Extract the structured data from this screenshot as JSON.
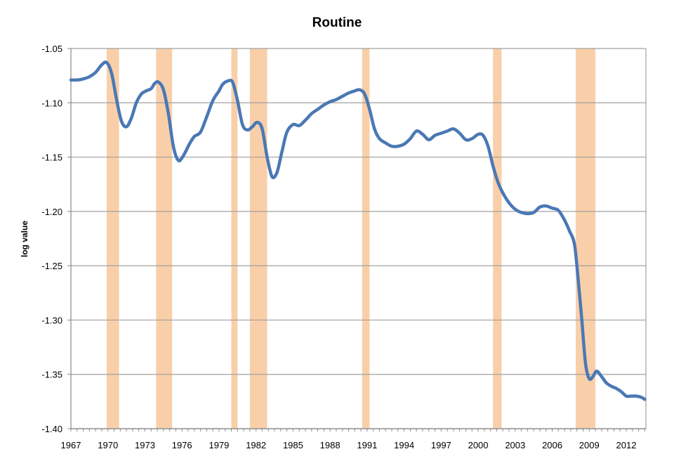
{
  "chart_data": {
    "type": "line",
    "title": "Routine",
    "xlabel": "",
    "ylabel": "log value",
    "xlim": [
      1967,
      2013.5
    ],
    "ylim": [
      -1.4,
      -1.05
    ],
    "grid": true,
    "legend": null,
    "x_ticks": [
      "1967",
      "1970",
      "1973",
      "1976",
      "1979",
      "1982",
      "1985",
      "1988",
      "1991",
      "1994",
      "1997",
      "2000",
      "2003",
      "2006",
      "2009",
      "2012"
    ],
    "y_ticks": [
      "-1.05",
      "-1.10",
      "-1.15",
      "-1.20",
      "-1.25",
      "-1.30",
      "-1.35",
      "-1.40"
    ],
    "recession_bands": [
      {
        "start": 1969.9,
        "end": 1970.9
      },
      {
        "start": 1973.9,
        "end": 1975.2
      },
      {
        "start": 1980.0,
        "end": 1980.5
      },
      {
        "start": 1981.5,
        "end": 1982.9
      },
      {
        "start": 1990.6,
        "end": 1991.2
      },
      {
        "start": 2001.2,
        "end": 2001.9
      },
      {
        "start": 2007.9,
        "end": 2009.5
      }
    ],
    "series": [
      {
        "name": "Routine",
        "color": "#4a78b5",
        "x": [
          1967.0,
          1967.5,
          1968.0,
          1968.5,
          1969.0,
          1969.5,
          1969.9,
          1970.3,
          1970.7,
          1971.1,
          1971.5,
          1971.9,
          1972.3,
          1972.7,
          1973.1,
          1973.5,
          1973.8,
          1974.1,
          1974.5,
          1974.9,
          1975.3,
          1975.7,
          1976.1,
          1976.6,
          1977.0,
          1977.5,
          1978.0,
          1978.5,
          1979.0,
          1979.3,
          1979.7,
          1980.1,
          1980.5,
          1980.9,
          1981.3,
          1981.7,
          1982.1,
          1982.5,
          1982.9,
          1983.3,
          1983.7,
          1984.1,
          1984.5,
          1985.0,
          1985.5,
          1986.0,
          1986.5,
          1987.0,
          1987.5,
          1988.0,
          1988.5,
          1989.0,
          1989.5,
          1990.0,
          1990.4,
          1990.8,
          1991.2,
          1991.6,
          1992.0,
          1992.5,
          1993.0,
          1993.5,
          1994.0,
          1994.5,
          1995.0,
          1995.5,
          1996.0,
          1996.5,
          1997.0,
          1997.5,
          1998.0,
          1998.5,
          1999.0,
          1999.5,
          2000.0,
          2000.4,
          2000.8,
          2001.2,
          2001.6,
          2002.0,
          2002.5,
          2003.0,
          2003.5,
          2004.0,
          2004.5,
          2005.0,
          2005.5,
          2006.0,
          2006.5,
          2007.0,
          2007.4,
          2007.8,
          2008.1,
          2008.4,
          2008.7,
          2009.0,
          2009.3,
          2009.6,
          2010.0,
          2010.4,
          2010.8,
          2011.2,
          2011.6,
          2012.0,
          2012.4,
          2012.8,
          2013.2,
          2013.5
        ],
        "y": [
          -1.079,
          -1.079,
          -1.078,
          -1.076,
          -1.072,
          -1.065,
          -1.063,
          -1.073,
          -1.097,
          -1.117,
          -1.122,
          -1.114,
          -1.1,
          -1.092,
          -1.089,
          -1.087,
          -1.082,
          -1.081,
          -1.088,
          -1.11,
          -1.14,
          -1.153,
          -1.149,
          -1.138,
          -1.131,
          -1.127,
          -1.113,
          -1.098,
          -1.089,
          -1.083,
          -1.08,
          -1.081,
          -1.098,
          -1.12,
          -1.125,
          -1.122,
          -1.118,
          -1.124,
          -1.15,
          -1.168,
          -1.164,
          -1.145,
          -1.127,
          -1.12,
          -1.121,
          -1.116,
          -1.11,
          -1.106,
          -1.102,
          -1.099,
          -1.097,
          -1.094,
          -1.091,
          -1.089,
          -1.088,
          -1.092,
          -1.106,
          -1.124,
          -1.133,
          -1.137,
          -1.14,
          -1.14,
          -1.138,
          -1.133,
          -1.126,
          -1.129,
          -1.134,
          -1.13,
          -1.128,
          -1.126,
          -1.124,
          -1.128,
          -1.134,
          -1.133,
          -1.129,
          -1.13,
          -1.14,
          -1.158,
          -1.173,
          -1.183,
          -1.192,
          -1.198,
          -1.201,
          -1.202,
          -1.201,
          -1.196,
          -1.195,
          -1.197,
          -1.199,
          -1.208,
          -1.218,
          -1.23,
          -1.262,
          -1.3,
          -1.34,
          -1.354,
          -1.352,
          -1.347,
          -1.352,
          -1.358,
          -1.361,
          -1.363,
          -1.366,
          -1.37,
          -1.37,
          -1.37,
          -1.371,
          -1.373
        ]
      }
    ]
  }
}
